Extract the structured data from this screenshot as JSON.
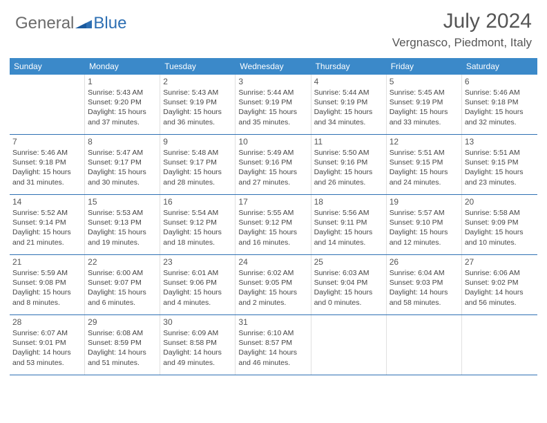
{
  "brand": {
    "general": "General",
    "blue": "Blue"
  },
  "title": "July 2024",
  "location": "Vergnasco, Piedmont, Italy",
  "colors": {
    "header_bg": "#3b89c9",
    "header_text": "#ffffff",
    "week_border": "#2d6fb3",
    "cell_border": "#e0e0e0",
    "text": "#454545",
    "title_text": "#555555"
  },
  "dayNames": [
    "Sunday",
    "Monday",
    "Tuesday",
    "Wednesday",
    "Thursday",
    "Friday",
    "Saturday"
  ],
  "weeks": [
    [
      null,
      {
        "n": "1",
        "sr": "5:43 AM",
        "ss": "9:20 PM",
        "dl": "15 hours and 37 minutes."
      },
      {
        "n": "2",
        "sr": "5:43 AM",
        "ss": "9:19 PM",
        "dl": "15 hours and 36 minutes."
      },
      {
        "n": "3",
        "sr": "5:44 AM",
        "ss": "9:19 PM",
        "dl": "15 hours and 35 minutes."
      },
      {
        "n": "4",
        "sr": "5:44 AM",
        "ss": "9:19 PM",
        "dl": "15 hours and 34 minutes."
      },
      {
        "n": "5",
        "sr": "5:45 AM",
        "ss": "9:19 PM",
        "dl": "15 hours and 33 minutes."
      },
      {
        "n": "6",
        "sr": "5:46 AM",
        "ss": "9:18 PM",
        "dl": "15 hours and 32 minutes."
      }
    ],
    [
      {
        "n": "7",
        "sr": "5:46 AM",
        "ss": "9:18 PM",
        "dl": "15 hours and 31 minutes."
      },
      {
        "n": "8",
        "sr": "5:47 AM",
        "ss": "9:17 PM",
        "dl": "15 hours and 30 minutes."
      },
      {
        "n": "9",
        "sr": "5:48 AM",
        "ss": "9:17 PM",
        "dl": "15 hours and 28 minutes."
      },
      {
        "n": "10",
        "sr": "5:49 AM",
        "ss": "9:16 PM",
        "dl": "15 hours and 27 minutes."
      },
      {
        "n": "11",
        "sr": "5:50 AM",
        "ss": "9:16 PM",
        "dl": "15 hours and 26 minutes."
      },
      {
        "n": "12",
        "sr": "5:51 AM",
        "ss": "9:15 PM",
        "dl": "15 hours and 24 minutes."
      },
      {
        "n": "13",
        "sr": "5:51 AM",
        "ss": "9:15 PM",
        "dl": "15 hours and 23 minutes."
      }
    ],
    [
      {
        "n": "14",
        "sr": "5:52 AM",
        "ss": "9:14 PM",
        "dl": "15 hours and 21 minutes."
      },
      {
        "n": "15",
        "sr": "5:53 AM",
        "ss": "9:13 PM",
        "dl": "15 hours and 19 minutes."
      },
      {
        "n": "16",
        "sr": "5:54 AM",
        "ss": "9:12 PM",
        "dl": "15 hours and 18 minutes."
      },
      {
        "n": "17",
        "sr": "5:55 AM",
        "ss": "9:12 PM",
        "dl": "15 hours and 16 minutes."
      },
      {
        "n": "18",
        "sr": "5:56 AM",
        "ss": "9:11 PM",
        "dl": "15 hours and 14 minutes."
      },
      {
        "n": "19",
        "sr": "5:57 AM",
        "ss": "9:10 PM",
        "dl": "15 hours and 12 minutes."
      },
      {
        "n": "20",
        "sr": "5:58 AM",
        "ss": "9:09 PM",
        "dl": "15 hours and 10 minutes."
      }
    ],
    [
      {
        "n": "21",
        "sr": "5:59 AM",
        "ss": "9:08 PM",
        "dl": "15 hours and 8 minutes."
      },
      {
        "n": "22",
        "sr": "6:00 AM",
        "ss": "9:07 PM",
        "dl": "15 hours and 6 minutes."
      },
      {
        "n": "23",
        "sr": "6:01 AM",
        "ss": "9:06 PM",
        "dl": "15 hours and 4 minutes."
      },
      {
        "n": "24",
        "sr": "6:02 AM",
        "ss": "9:05 PM",
        "dl": "15 hours and 2 minutes."
      },
      {
        "n": "25",
        "sr": "6:03 AM",
        "ss": "9:04 PM",
        "dl": "15 hours and 0 minutes."
      },
      {
        "n": "26",
        "sr": "6:04 AM",
        "ss": "9:03 PM",
        "dl": "14 hours and 58 minutes."
      },
      {
        "n": "27",
        "sr": "6:06 AM",
        "ss": "9:02 PM",
        "dl": "14 hours and 56 minutes."
      }
    ],
    [
      {
        "n": "28",
        "sr": "6:07 AM",
        "ss": "9:01 PM",
        "dl": "14 hours and 53 minutes."
      },
      {
        "n": "29",
        "sr": "6:08 AM",
        "ss": "8:59 PM",
        "dl": "14 hours and 51 minutes."
      },
      {
        "n": "30",
        "sr": "6:09 AM",
        "ss": "8:58 PM",
        "dl": "14 hours and 49 minutes."
      },
      {
        "n": "31",
        "sr": "6:10 AM",
        "ss": "8:57 PM",
        "dl": "14 hours and 46 minutes."
      },
      null,
      null,
      null
    ]
  ],
  "labels": {
    "sunrise": "Sunrise: ",
    "sunset": "Sunset: ",
    "daylight": "Daylight: "
  }
}
